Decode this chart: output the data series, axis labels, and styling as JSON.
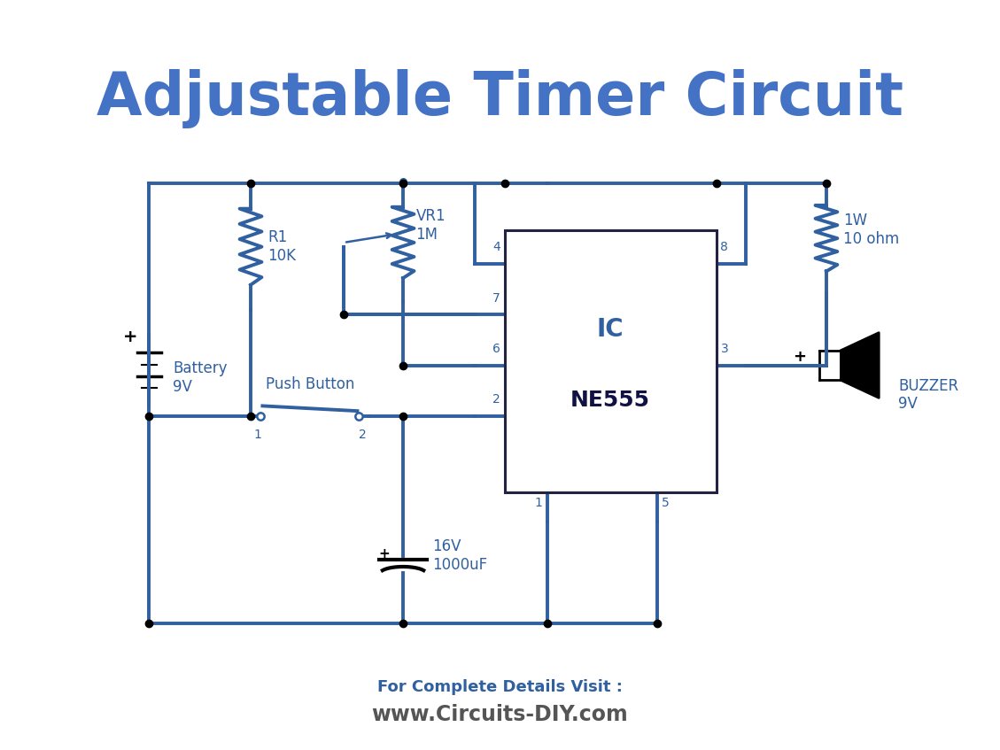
{
  "title": "Adjustable Timer Circuit",
  "title_color": "#4472C4",
  "title_fontsize": 48,
  "circuit_color": "#3060A0",
  "line_width": 2.8,
  "bg_color": "#FFFFFF",
  "footer_text1": "For Complete Details Visit :",
  "footer_text2": "www.Circuits-DIY.com",
  "footer_color1": "#3060A0",
  "footer_color2": "#555555",
  "component_color": "#3060A0",
  "label_color": "#3060A0",
  "dot_color": "#000000"
}
